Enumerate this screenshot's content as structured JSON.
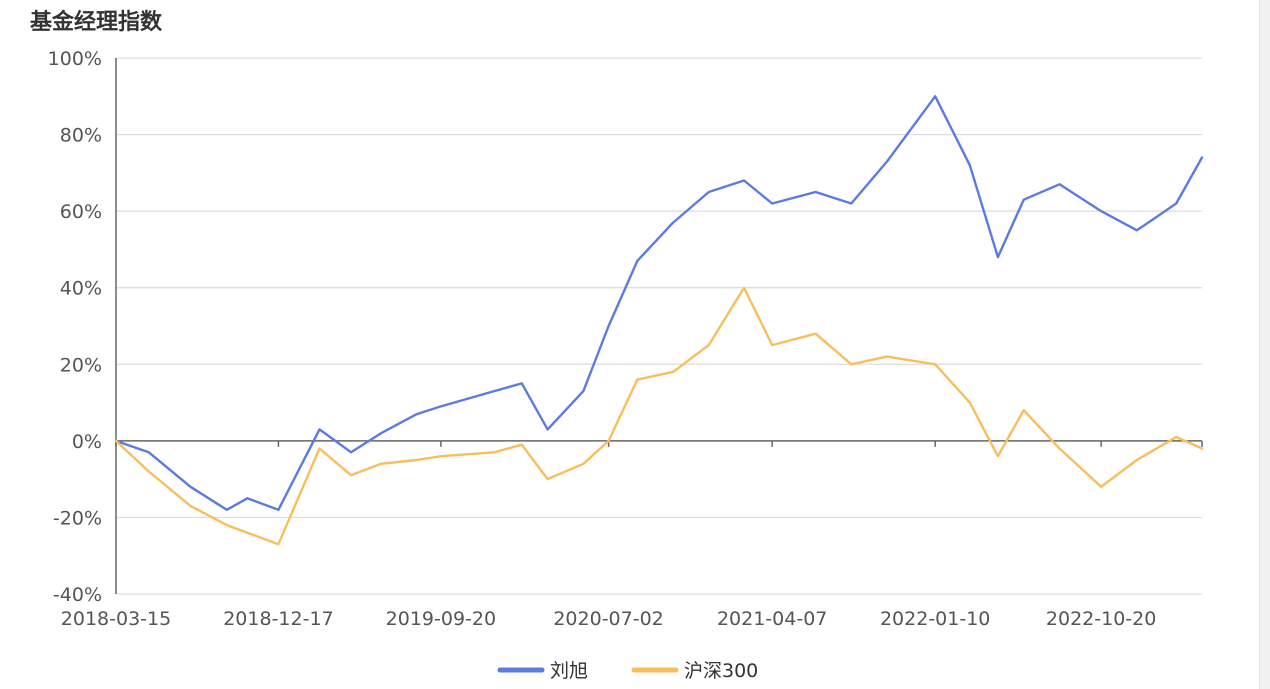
{
  "page_title": "基金经理指数",
  "chart_data": {
    "type": "line",
    "title": "基金经理指数",
    "x_ticks": [
      "2018-03-15",
      "2018-12-17",
      "2019-09-20",
      "2020-07-02",
      "2021-04-07",
      "2022-01-10",
      "2022-10-20"
    ],
    "y_ticks": [
      "100%",
      "80%",
      "60%",
      "40%",
      "20%",
      "0%",
      "-20%",
      "-40%"
    ],
    "ylim": [
      -40,
      100
    ],
    "grid": true,
    "legend_position": "bottom-center",
    "x": [
      "2018-03-15",
      "2018-05-10",
      "2018-07-20",
      "2018-09-20",
      "2018-10-25",
      "2018-12-17",
      "2019-02-25",
      "2019-04-20",
      "2019-06-10",
      "2019-08-10",
      "2019-09-20",
      "2019-12-20",
      "2020-02-05",
      "2020-03-20",
      "2020-05-20",
      "2020-07-02",
      "2020-08-20",
      "2020-10-20",
      "2020-12-20",
      "2021-02-18",
      "2021-04-07",
      "2021-06-20",
      "2021-08-20",
      "2021-10-20",
      "2022-01-10",
      "2022-03-10",
      "2022-04-27",
      "2022-06-10",
      "2022-08-10",
      "2022-10-20",
      "2022-12-20",
      "2023-02-25",
      "2023-04-10"
    ],
    "series": [
      {
        "name": "刘旭",
        "color": "#5b7be0",
        "values": [
          0,
          -3,
          -12,
          -18,
          -15,
          -18,
          3,
          -3,
          2,
          7,
          9,
          13,
          15,
          3,
          13,
          30,
          47,
          57,
          65,
          68,
          62,
          65,
          62,
          73,
          90,
          72,
          48,
          63,
          67,
          60,
          55,
          62,
          74
        ]
      },
      {
        "name": "沪深300",
        "color": "#f9be5c",
        "values": [
          0,
          -8,
          -17,
          -22,
          -24,
          -27,
          -2,
          -9,
          -6,
          -5,
          -4,
          -3,
          -1,
          -10,
          -6,
          0,
          16,
          18,
          25,
          40,
          25,
          28,
          20,
          22,
          20,
          10,
          -4,
          8,
          -2,
          -12,
          -5,
          1,
          -2
        ]
      }
    ]
  }
}
